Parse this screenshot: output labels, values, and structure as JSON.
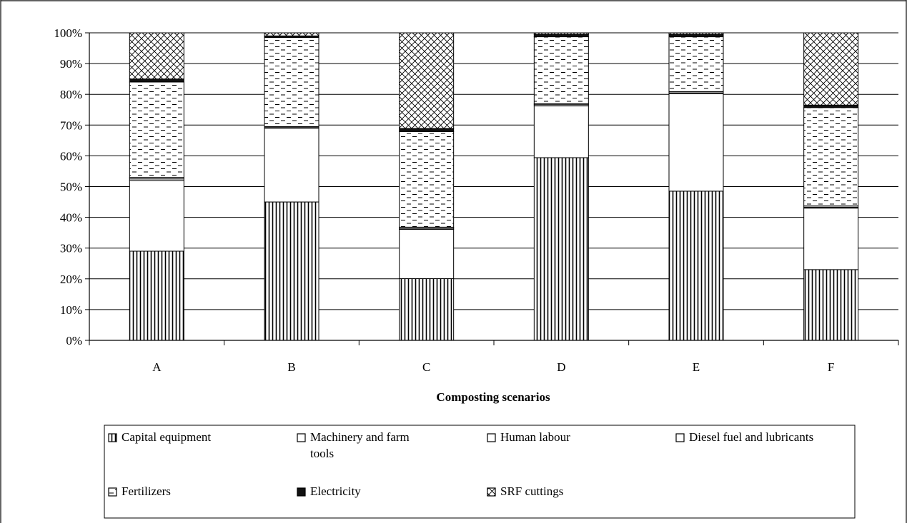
{
  "chart_data": {
    "type": "bar",
    "stacked": "percent",
    "title": "",
    "xlabel": "Composting scenarios",
    "ylabel": "",
    "ylim": [
      0,
      100
    ],
    "yticks": [
      "0%",
      "10%",
      "20%",
      "30%",
      "40%",
      "50%",
      "60%",
      "70%",
      "80%",
      "90%",
      "100%"
    ],
    "categories": [
      "A",
      "B",
      "C",
      "D",
      "E",
      "F"
    ],
    "grid": true,
    "legend_position": "bottom",
    "series": [
      {
        "name": "Capital equipment",
        "pattern": "vertical",
        "values": [
          29,
          45,
          20,
          60,
          49,
          23
        ]
      },
      {
        "name": "Machinery and farm tools",
        "pattern": "blank",
        "values": [
          23,
          24,
          16,
          17,
          32,
          20
        ]
      },
      {
        "name": "Human labour",
        "pattern": "blank",
        "values": [
          0.5,
          0.2,
          0.3,
          0.4,
          0.3,
          0.3
        ]
      },
      {
        "name": "Diesel fuel and lubricants",
        "pattern": "blank",
        "values": [
          0.5,
          0.3,
          0.4,
          0.3,
          0.4,
          0.4
        ]
      },
      {
        "name": "Fertilizers",
        "pattern": "dashes",
        "values": [
          31,
          29,
          31,
          22,
          18,
          32
        ]
      },
      {
        "name": "Electricity",
        "pattern": "black",
        "values": [
          1,
          0.5,
          1,
          0.8,
          0.8,
          0.8
        ]
      },
      {
        "name": "SRF cuttings",
        "pattern": "cross",
        "values": [
          15,
          1,
          31,
          0.5,
          0.5,
          23.5
        ]
      }
    ]
  }
}
